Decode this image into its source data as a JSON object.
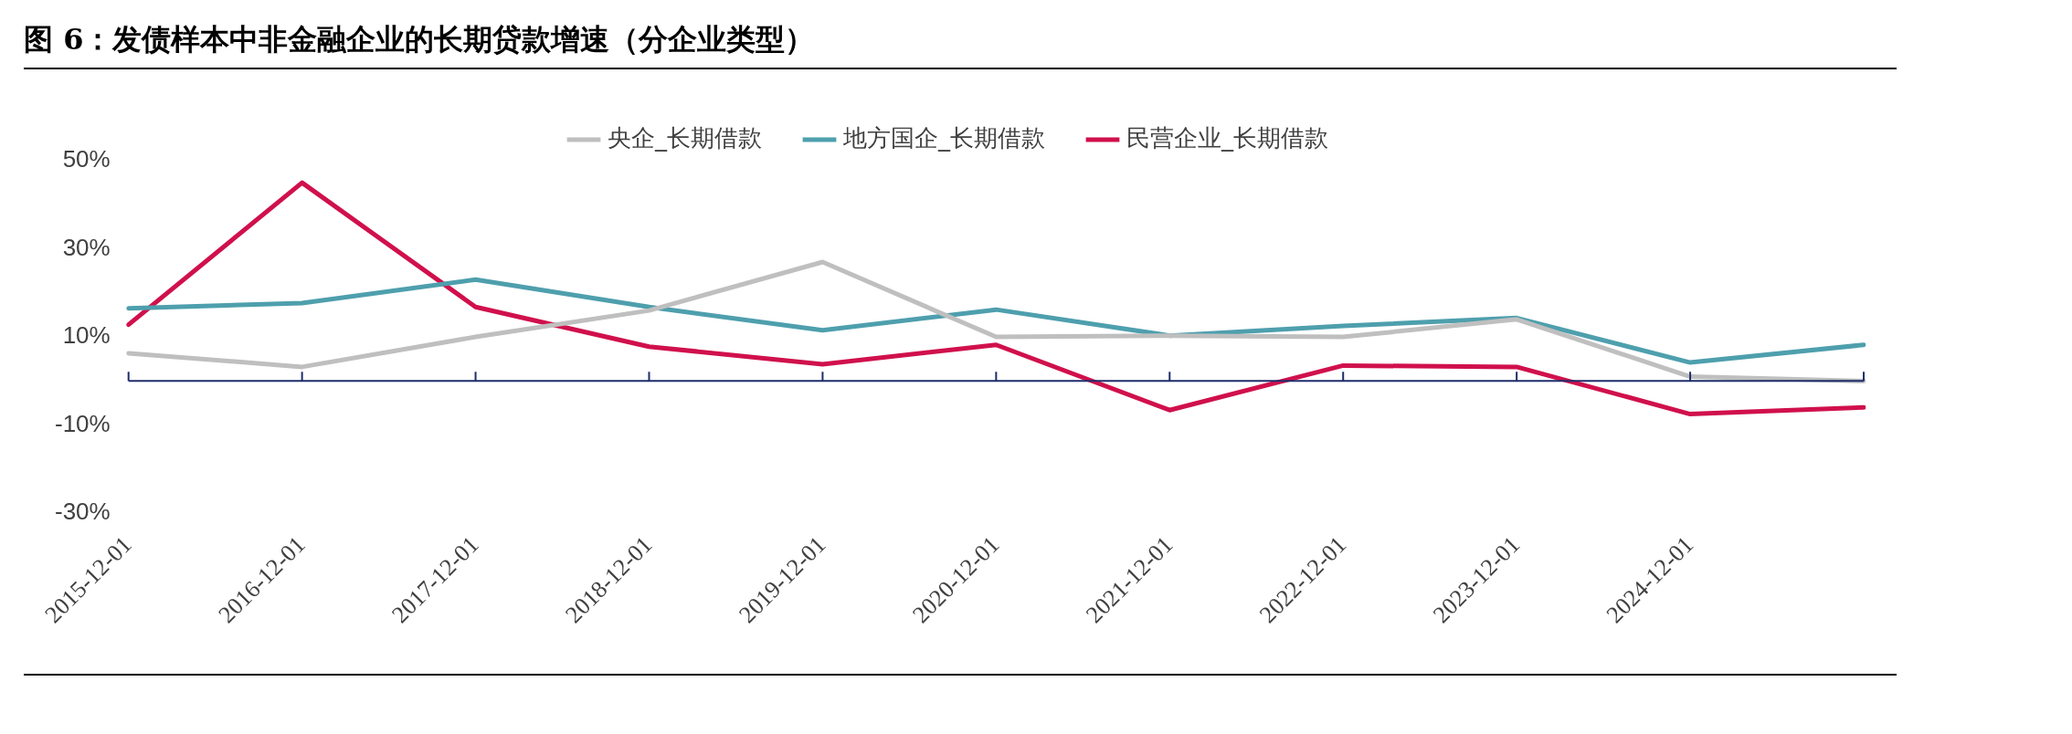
{
  "chart_data": {
    "type": "line",
    "title": "图 6：发债样本中非金融企业的长期贷款增速（分企业类型）",
    "categories": [
      "2015-12-01",
      "2016-12-01",
      "2017-12-01",
      "2018-12-01",
      "2019-12-01",
      "2020-12-01",
      "2021-12-01",
      "2022-12-01",
      "2023-12-01",
      "2024-12-01",
      null
    ],
    "series": [
      {
        "name": "央企_长期借款",
        "color": "#bfbfbf",
        "values": [
          6.3,
          3.2,
          10,
          16,
          27,
          10,
          10.3,
          10,
          14,
          1,
          0
        ]
      },
      {
        "name": "地方国企_长期借款",
        "color": "#4e9fad",
        "values": [
          16.5,
          17.7,
          23,
          16.8,
          11.5,
          16.2,
          10.3,
          12.5,
          14.3,
          4.2,
          8.2
        ]
      },
      {
        "name": "民营企业_长期借款",
        "color": "#d0104c",
        "values": [
          12.8,
          45,
          16.8,
          7.8,
          3.8,
          8.2,
          -6.6,
          3.5,
          3.2,
          -7.5,
          -6
        ]
      }
    ],
    "ylim": [
      -30,
      50
    ],
    "ref_lines": [
      {
        "axis": "y",
        "value": 0,
        "color": "#1f2d6b"
      }
    ],
    "yticks": [
      {
        "value": -30,
        "label": "-30%"
      },
      {
        "value": -10,
        "label": "-10%"
      },
      {
        "value": 10,
        "label": "10%"
      },
      {
        "value": 30,
        "label": "30%"
      },
      {
        "value": 50,
        "label": "50%"
      }
    ],
    "grid": false,
    "legend": "top",
    "marker": "none",
    "line_style": "solid"
  }
}
